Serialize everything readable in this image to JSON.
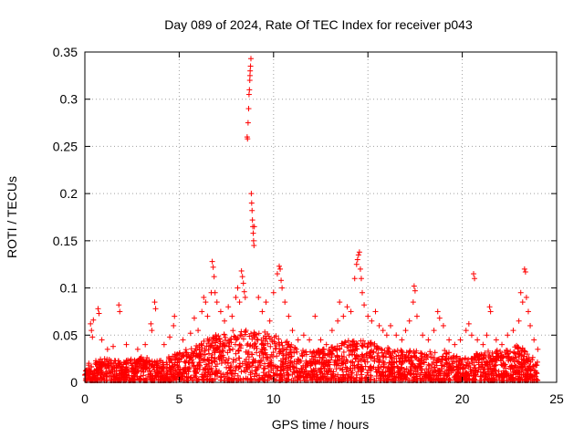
{
  "chart_data": {
    "type": "scatter",
    "title": "Day 089 of 2024, Rate Of TEC Index for receiver p043",
    "xlabel": "GPS time / hours",
    "ylabel": "ROTI / TECUs",
    "xlim": [
      0,
      25
    ],
    "ylim": [
      0,
      0.35
    ],
    "x_ticks": [
      0,
      5,
      10,
      15,
      20,
      25
    ],
    "y_ticks": [
      0,
      0.05,
      0.1,
      0.15,
      0.2,
      0.25,
      0.3,
      0.35
    ],
    "x_tick_labels": [
      "0",
      "5",
      "10",
      "15",
      "20",
      "25"
    ],
    "y_tick_labels": [
      "0",
      "0.05",
      "0.1",
      "0.15",
      "0.2",
      "0.25",
      "0.3",
      "0.35"
    ],
    "grid": true,
    "marker": "+",
    "color": "#ff0000",
    "series": [
      {
        "name": "ROTI",
        "points": [
          [
            0.3,
            0.062
          ],
          [
            0.35,
            0.055
          ],
          [
            0.4,
            0.048
          ],
          [
            0.45,
            0.066
          ],
          [
            0.7,
            0.078
          ],
          [
            0.75,
            0.073
          ],
          [
            0.9,
            0.045
          ],
          [
            1.2,
            0.035
          ],
          [
            1.5,
            0.038
          ],
          [
            1.8,
            0.082
          ],
          [
            1.85,
            0.075
          ],
          [
            2.2,
            0.04
          ],
          [
            2.8,
            0.035
          ],
          [
            3.2,
            0.04
          ],
          [
            3.5,
            0.062
          ],
          [
            3.55,
            0.055
          ],
          [
            3.7,
            0.085
          ],
          [
            3.75,
            0.078
          ],
          [
            4.2,
            0.04
          ],
          [
            4.5,
            0.048
          ],
          [
            4.7,
            0.06
          ],
          [
            4.75,
            0.07
          ],
          [
            5.2,
            0.045
          ],
          [
            5.6,
            0.052
          ],
          [
            5.8,
            0.068
          ],
          [
            6.0,
            0.055
          ],
          [
            6.2,
            0.075
          ],
          [
            6.3,
            0.09
          ],
          [
            6.4,
            0.085
          ],
          [
            6.5,
            0.07
          ],
          [
            6.7,
            0.095
          ],
          [
            6.75,
            0.128
          ],
          [
            6.8,
            0.122
          ],
          [
            6.85,
            0.112
          ],
          [
            6.9,
            0.095
          ],
          [
            7.0,
            0.085
          ],
          [
            7.2,
            0.075
          ],
          [
            7.4,
            0.065
          ],
          [
            7.6,
            0.08
          ],
          [
            7.8,
            0.07
          ],
          [
            8.0,
            0.09
          ],
          [
            8.1,
            0.1
          ],
          [
            8.2,
            0.085
          ],
          [
            8.3,
            0.118
          ],
          [
            8.35,
            0.112
          ],
          [
            8.4,
            0.105
          ],
          [
            8.45,
            0.096
          ],
          [
            8.5,
            0.09
          ],
          [
            8.6,
            0.26
          ],
          [
            8.62,
            0.258
          ],
          [
            8.65,
            0.275
          ],
          [
            8.68,
            0.29
          ],
          [
            8.7,
            0.305
          ],
          [
            8.72,
            0.31
          ],
          [
            8.74,
            0.32
          ],
          [
            8.75,
            0.325
          ],
          [
            8.76,
            0.33
          ],
          [
            8.78,
            0.335
          ],
          [
            8.8,
            0.343
          ],
          [
            8.82,
            0.2
          ],
          [
            8.84,
            0.19
          ],
          [
            8.86,
            0.182
          ],
          [
            8.88,
            0.172
          ],
          [
            8.9,
            0.165
          ],
          [
            8.92,
            0.158
          ],
          [
            8.94,
            0.15
          ],
          [
            8.96,
            0.145
          ],
          [
            8.98,
            0.165
          ],
          [
            9.2,
            0.09
          ],
          [
            9.4,
            0.075
          ],
          [
            9.6,
            0.085
          ],
          [
            9.8,
            0.065
          ],
          [
            10.0,
            0.095
          ],
          [
            10.2,
            0.115
          ],
          [
            10.3,
            0.123
          ],
          [
            10.35,
            0.12
          ],
          [
            10.4,
            0.108
          ],
          [
            10.45,
            0.1
          ],
          [
            10.6,
            0.085
          ],
          [
            10.8,
            0.07
          ],
          [
            11.0,
            0.055
          ],
          [
            11.3,
            0.045
          ],
          [
            11.6,
            0.05
          ],
          [
            11.9,
            0.045
          ],
          [
            12.2,
            0.07
          ],
          [
            12.5,
            0.045
          ],
          [
            12.8,
            0.04
          ],
          [
            13.1,
            0.055
          ],
          [
            13.4,
            0.065
          ],
          [
            13.5,
            0.085
          ],
          [
            13.7,
            0.07
          ],
          [
            13.9,
            0.08
          ],
          [
            14.1,
            0.075
          ],
          [
            14.3,
            0.11
          ],
          [
            14.4,
            0.125
          ],
          [
            14.45,
            0.13
          ],
          [
            14.5,
            0.135
          ],
          [
            14.55,
            0.138
          ],
          [
            14.6,
            0.12
          ],
          [
            14.65,
            0.11
          ],
          [
            14.7,
            0.095
          ],
          [
            14.8,
            0.082
          ],
          [
            15.0,
            0.07
          ],
          [
            15.2,
            0.065
          ],
          [
            15.4,
            0.075
          ],
          [
            15.6,
            0.06
          ],
          [
            15.8,
            0.055
          ],
          [
            16.0,
            0.05
          ],
          [
            16.2,
            0.06
          ],
          [
            16.5,
            0.05
          ],
          [
            16.8,
            0.045
          ],
          [
            17.0,
            0.055
          ],
          [
            17.2,
            0.065
          ],
          [
            17.4,
            0.085
          ],
          [
            17.45,
            0.102
          ],
          [
            17.5,
            0.097
          ],
          [
            17.6,
            0.07
          ],
          [
            17.9,
            0.05
          ],
          [
            18.2,
            0.045
          ],
          [
            18.5,
            0.055
          ],
          [
            18.7,
            0.075
          ],
          [
            18.8,
            0.068
          ],
          [
            19.0,
            0.06
          ],
          [
            19.3,
            0.045
          ],
          [
            19.6,
            0.04
          ],
          [
            19.9,
            0.045
          ],
          [
            20.2,
            0.055
          ],
          [
            20.35,
            0.062
          ],
          [
            20.5,
            0.05
          ],
          [
            20.6,
            0.115
          ],
          [
            20.65,
            0.11
          ],
          [
            20.8,
            0.045
          ],
          [
            21.1,
            0.04
          ],
          [
            21.3,
            0.05
          ],
          [
            21.45,
            0.08
          ],
          [
            21.5,
            0.075
          ],
          [
            21.8,
            0.045
          ],
          [
            22.1,
            0.04
          ],
          [
            22.4,
            0.05
          ],
          [
            22.7,
            0.055
          ],
          [
            23.0,
            0.065
          ],
          [
            23.1,
            0.095
          ],
          [
            23.2,
            0.085
          ],
          [
            23.3,
            0.12
          ],
          [
            23.35,
            0.117
          ],
          [
            23.4,
            0.09
          ],
          [
            23.5,
            0.075
          ],
          [
            23.6,
            0.06
          ],
          [
            23.8,
            0.045
          ],
          [
            24.0,
            0.035
          ]
        ],
        "dense_band": [
          [
            0.0,
            0.018
          ],
          [
            1.0,
            0.022
          ],
          [
            2.0,
            0.02
          ],
          [
            3.0,
            0.024
          ],
          [
            4.0,
            0.02
          ],
          [
            5.0,
            0.028
          ],
          [
            6.0,
            0.035
          ],
          [
            7.0,
            0.045
          ],
          [
            8.0,
            0.05
          ],
          [
            9.0,
            0.048
          ],
          [
            10.0,
            0.045
          ],
          [
            11.0,
            0.035
          ],
          [
            12.0,
            0.028
          ],
          [
            13.0,
            0.032
          ],
          [
            14.0,
            0.04
          ],
          [
            15.0,
            0.038
          ],
          [
            16.0,
            0.032
          ],
          [
            17.0,
            0.03
          ],
          [
            18.0,
            0.028
          ],
          [
            19.0,
            0.03
          ],
          [
            20.0,
            0.022
          ],
          [
            21.0,
            0.028
          ],
          [
            22.0,
            0.03
          ],
          [
            23.0,
            0.035
          ],
          [
            24.0,
            0.02
          ]
        ]
      }
    ]
  }
}
